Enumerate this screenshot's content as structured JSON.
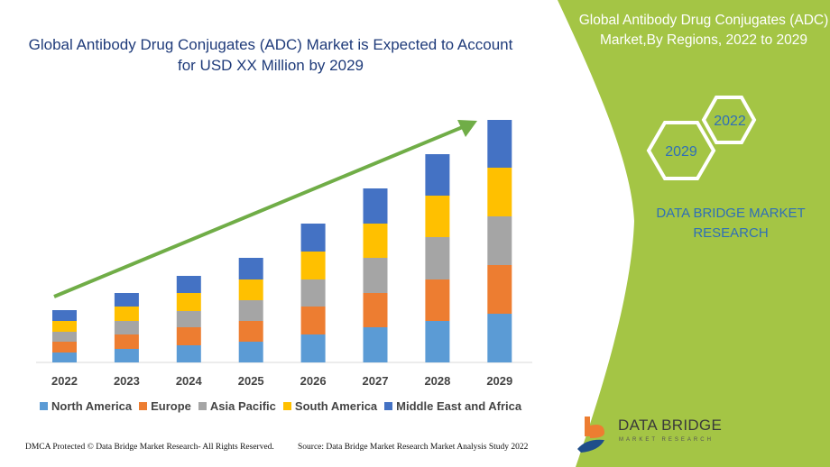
{
  "title": "Global Antibody Drug Conjugates (ADC) Market is Expected to Account for USD XX Million by 2029",
  "side_panel": {
    "title": "Global Antibody Drug Conjugates (ADC) Market,By Regions, 2022 to 2029",
    "hex_start": "2022",
    "hex_end": "2029",
    "brand": "DATA BRIDGE MARKET RESEARCH",
    "color": "#a4c545"
  },
  "logo": {
    "name": "DATA BRIDGE",
    "tagline": "MARKET RESEARCH"
  },
  "footer": {
    "left": "DMCA Protected © Data Bridge Market Research- All Rights Reserved.",
    "right": "Source: Data Bridge Market Research Market Analysis Study 2022"
  },
  "chart_data": {
    "type": "bar",
    "stacked": true,
    "grid": false,
    "legend_position": "bottom",
    "categories": [
      "2022",
      "2023",
      "2024",
      "2025",
      "2026",
      "2027",
      "2028",
      "2029"
    ],
    "series": [
      {
        "name": "North America",
        "color": "#5b9bd5",
        "values": [
          11,
          15,
          19,
          23,
          31,
          39,
          46,
          54
        ]
      },
      {
        "name": "Europe",
        "color": "#ed7d31",
        "values": [
          12,
          16,
          20,
          23,
          31,
          38,
          46,
          54
        ]
      },
      {
        "name": "Asia Pacific",
        "color": "#a5a5a5",
        "values": [
          11,
          15,
          18,
          23,
          30,
          39,
          47,
          54
        ]
      },
      {
        "name": "South America",
        "color": "#ffc000",
        "values": [
          12,
          16,
          20,
          23,
          31,
          38,
          46,
          54
        ]
      },
      {
        "name": "Middle East and Africa",
        "color": "#4472c4",
        "values": [
          12,
          15,
          19,
          24,
          31,
          39,
          46,
          53
        ]
      }
    ],
    "trend_arrow_color": "#70ad47"
  }
}
